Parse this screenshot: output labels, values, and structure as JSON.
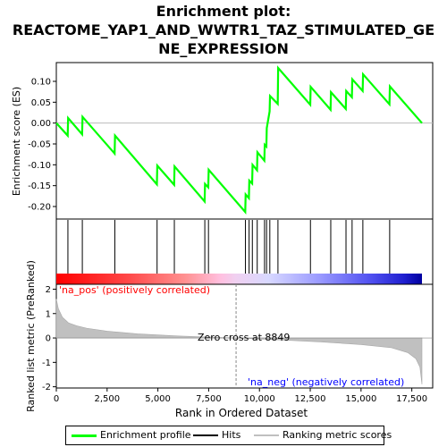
{
  "title_line1": "Enrichment plot:",
  "title_line2": "REACTOME_YAP1_AND_WWTR1_TAZ_STIMULATED_GE",
  "title_line3": "NE_EXPRESSION",
  "legend": {
    "enrichment_label": "Enrichment profile",
    "hits_label": "Hits",
    "ranking_label": "Ranking metric scores"
  },
  "colors": {
    "enrichment": "#00ff00",
    "hits": "#000000",
    "ranking": "#c0c0c0",
    "pos_label": "#ff0000",
    "neg_label": "#0000ff"
  },
  "chart_data": {
    "type": "line",
    "xlabel": "Rank in Ordered Dataset",
    "xlim": [
      0,
      18000
    ],
    "xticks": [
      0,
      2500,
      5000,
      7500,
      10000,
      12500,
      15000,
      17500
    ],
    "enrichment": {
      "ylabel": "Enrichment score (ES)",
      "ylim": [
        -0.23,
        0.145
      ],
      "yticks": [
        -0.2,
        -0.15,
        -0.1,
        -0.05,
        0.0,
        0.05,
        0.1
      ],
      "ytick_labels": [
        "-0.20",
        "-0.15",
        "-0.10",
        "-0.05",
        "0.00",
        "0.05",
        "0.10"
      ],
      "x": [
        0,
        560,
        580,
        1270,
        1290,
        2870,
        2890,
        4950,
        4970,
        5800,
        5820,
        7300,
        7320,
        7480,
        7500,
        9300,
        9320,
        9480,
        9500,
        9640,
        9660,
        9880,
        9900,
        10240,
        10260,
        10340,
        10360,
        10500,
        10520,
        10900,
        10920,
        12500,
        12520,
        13500,
        13520,
        14250,
        14270,
        14550,
        14570,
        15080,
        15100,
        16400,
        16420,
        18000
      ],
      "y": [
        0.0,
        -0.03,
        0.012,
        -0.027,
        0.015,
        -0.073,
        -0.03,
        -0.147,
        -0.102,
        -0.148,
        -0.104,
        -0.188,
        -0.146,
        -0.154,
        -0.112,
        -0.213,
        -0.171,
        -0.18,
        -0.138,
        -0.145,
        -0.1,
        -0.113,
        -0.07,
        -0.09,
        -0.052,
        -0.056,
        -0.012,
        0.028,
        0.065,
        0.046,
        0.132,
        0.044,
        0.087,
        0.032,
        0.074,
        0.034,
        0.077,
        0.062,
        0.105,
        0.077,
        0.117,
        0.045,
        0.088,
        0.0
      ]
    },
    "hits_x": [
      570,
      1280,
      2880,
      4960,
      5810,
      7310,
      7490,
      9310,
      9490,
      9650,
      9890,
      10250,
      10350,
      10510,
      10910,
      12510,
      13510,
      14260,
      14560,
      15090,
      16410
    ],
    "ranking": {
      "ylabel": "Ranked list metric (PreRanked)",
      "ylim": [
        -2.05,
        2.2
      ],
      "yticks": [
        -2,
        -1,
        0,
        1,
        2
      ],
      "ytick_labels": [
        "-2",
        "-1",
        "0",
        "1",
        "2"
      ],
      "x": [
        0,
        100,
        300,
        600,
        1000,
        1500,
        2500,
        4000,
        6000,
        8849,
        11000,
        13000,
        15000,
        16500,
        17300,
        17700,
        17900,
        18000
      ],
      "y": [
        1.6,
        1.2,
        0.85,
        0.62,
        0.5,
        0.4,
        0.28,
        0.17,
        0.08,
        0.0,
        -0.08,
        -0.16,
        -0.27,
        -0.4,
        -0.6,
        -0.85,
        -1.2,
        -1.9
      ]
    },
    "zero_cross_label": "Zero cross at 8849",
    "zero_cross_x": 8849,
    "pos_label": "'na_pos' (positively correlated)",
    "neg_label": "'na_neg' (negatively correlated)"
  }
}
